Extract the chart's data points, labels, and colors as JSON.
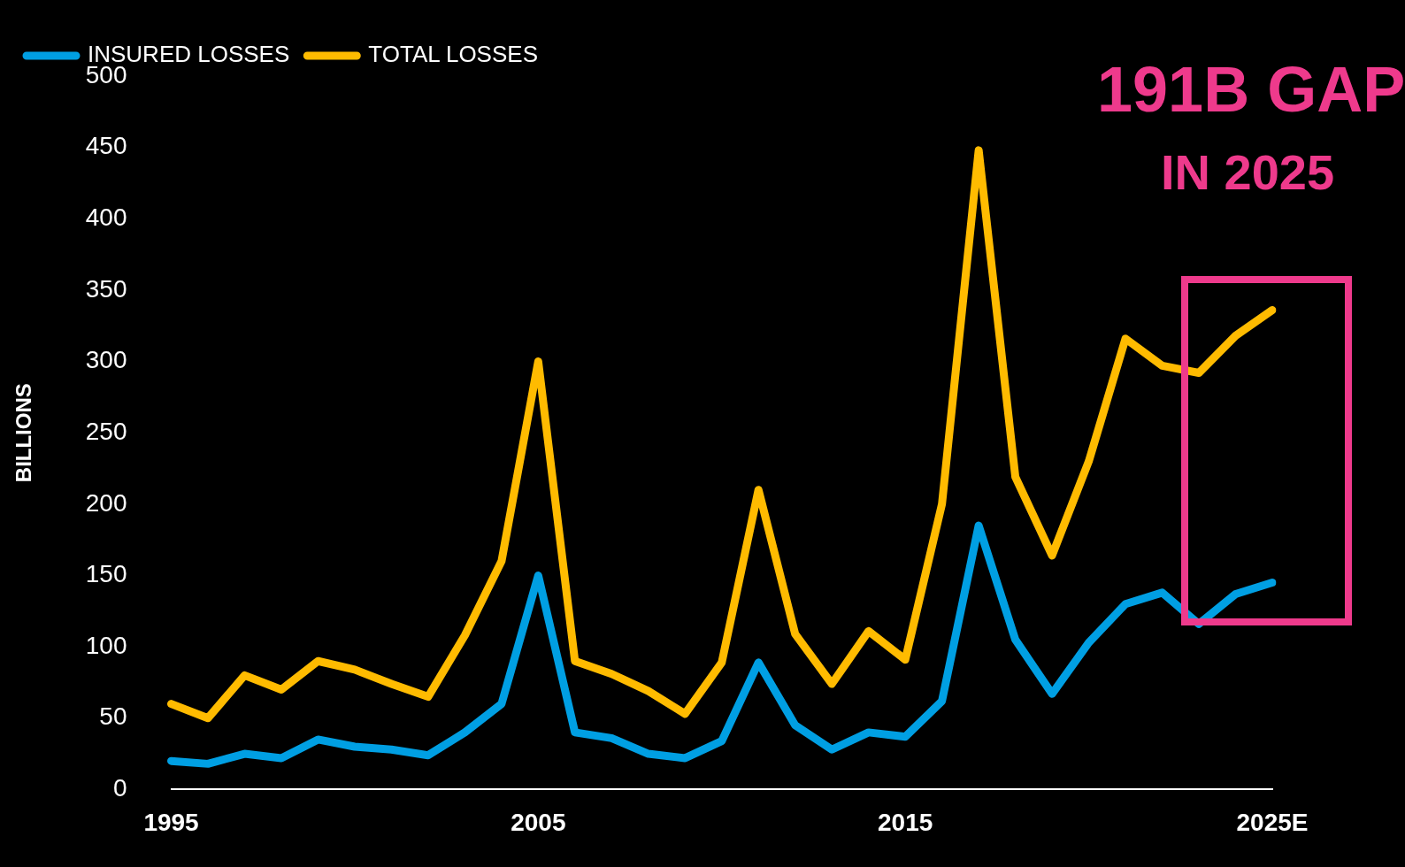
{
  "chart_data": {
    "type": "line",
    "ylabel": "BILLIONS",
    "categories": [
      "1995",
      null,
      null,
      null,
      null,
      null,
      null,
      null,
      null,
      null,
      "2005",
      null,
      null,
      null,
      null,
      null,
      null,
      null,
      null,
      null,
      "2015",
      null,
      null,
      null,
      null,
      null,
      null,
      null,
      null,
      null,
      "2025E"
    ],
    "series": [
      {
        "name": "INSURED LOSSES",
        "color": "#009fe3",
        "values": [
          20,
          18,
          25,
          22,
          35,
          30,
          28,
          24,
          40,
          60,
          150,
          40,
          36,
          25,
          22,
          34,
          89,
          45,
          28,
          40,
          37,
          62,
          185,
          105,
          67,
          103,
          130,
          138,
          116,
          137,
          145
        ]
      },
      {
        "name": "TOTAL LOSSES",
        "color": "#ffbb00",
        "values": [
          60,
          50,
          80,
          70,
          90,
          84,
          74,
          65,
          108,
          160,
          300,
          90,
          81,
          69,
          53,
          89,
          210,
          109,
          74,
          111,
          91,
          200,
          448,
          219,
          164,
          230,
          316,
          297,
          292,
          318,
          336
        ]
      }
    ],
    "ylim": [
      0,
      500
    ],
    "yticks": [
      0,
      50,
      100,
      150,
      200,
      250,
      300,
      350,
      400,
      450,
      500
    ],
    "grid": false,
    "legend": "top left",
    "marker": "none",
    "line_style": "solid",
    "annotations": [
      "191B GAP",
      "IN 2025"
    ]
  }
}
